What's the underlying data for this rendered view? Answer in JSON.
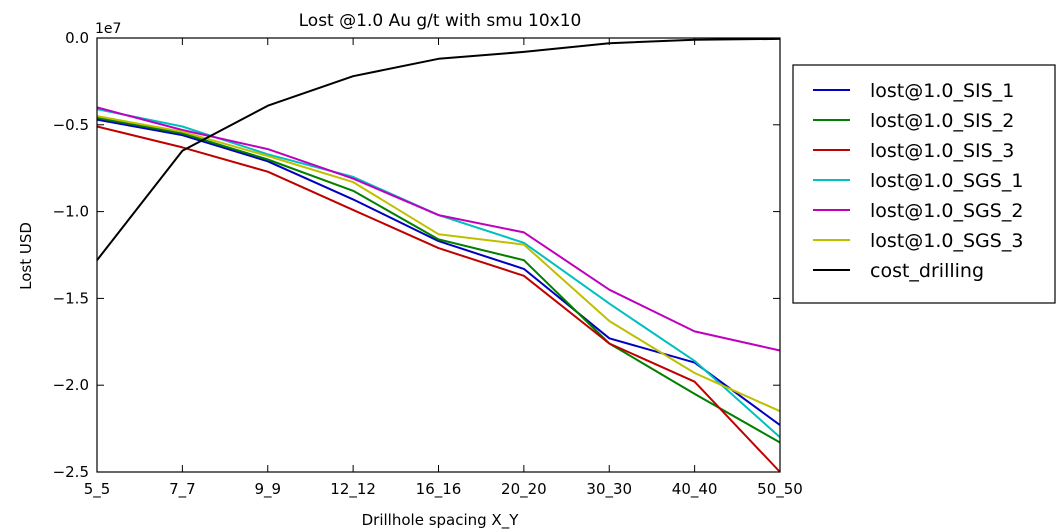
{
  "chart_data": {
    "type": "line",
    "title": "Lost @1.0 Au g/t with smu 10x10",
    "xlabel": "Drillhole spacing X_Y",
    "ylabel": "Lost USD",
    "y_offset_label": "1e7",
    "categories": [
      "5_5",
      "7_7",
      "9_9",
      "12_12",
      "16_16",
      "20_20",
      "30_30",
      "40_40",
      "50_50"
    ],
    "ylim": [
      -2.5,
      0.0
    ],
    "y_ticks": [
      0.0,
      -0.5,
      -1.0,
      -1.5,
      -2.0,
      -2.5
    ],
    "y_tick_labels": [
      "0.0",
      "−0.5",
      "−1.0",
      "−1.5",
      "−2.0",
      "−2.5"
    ],
    "grid": false,
    "legend_position": "outside-right",
    "series": [
      {
        "name": "lost@1.0_SIS_1",
        "color": "#0000bf",
        "values": [
          -0.47,
          -0.56,
          -0.71,
          -0.93,
          -1.17,
          -1.33,
          -1.73,
          -1.87,
          -2.23
        ]
      },
      {
        "name": "lost@1.0_SIS_2",
        "color": "#007f00",
        "values": [
          -0.46,
          -0.55,
          -0.7,
          -0.88,
          -1.16,
          -1.28,
          -1.76,
          -2.05,
          -2.33
        ]
      },
      {
        "name": "lost@1.0_SIS_3",
        "color": "#bf0000",
        "values": [
          -0.51,
          -0.63,
          -0.77,
          -0.99,
          -1.21,
          -1.37,
          -1.76,
          -1.98,
          -2.5
        ]
      },
      {
        "name": "lost@1.0_SGS_1",
        "color": "#00bfbf",
        "values": [
          -0.41,
          -0.51,
          -0.67,
          -0.8,
          -1.02,
          -1.18,
          -1.53,
          -1.86,
          -2.3
        ]
      },
      {
        "name": "lost@1.0_SGS_2",
        "color": "#bf00bf",
        "values": [
          -0.4,
          -0.53,
          -0.64,
          -0.81,
          -1.02,
          -1.12,
          -1.45,
          -1.69,
          -1.8
        ]
      },
      {
        "name": "lost@1.0_SGS_3",
        "color": "#bfbf00",
        "values": [
          -0.45,
          -0.54,
          -0.68,
          -0.83,
          -1.13,
          -1.19,
          -1.63,
          -1.93,
          -2.15
        ]
      },
      {
        "name": "cost_drilling",
        "color": "#000000",
        "values": [
          -1.28,
          -0.65,
          -0.39,
          -0.22,
          -0.12,
          -0.08,
          -0.03,
          -0.01,
          -0.005
        ]
      }
    ]
  }
}
